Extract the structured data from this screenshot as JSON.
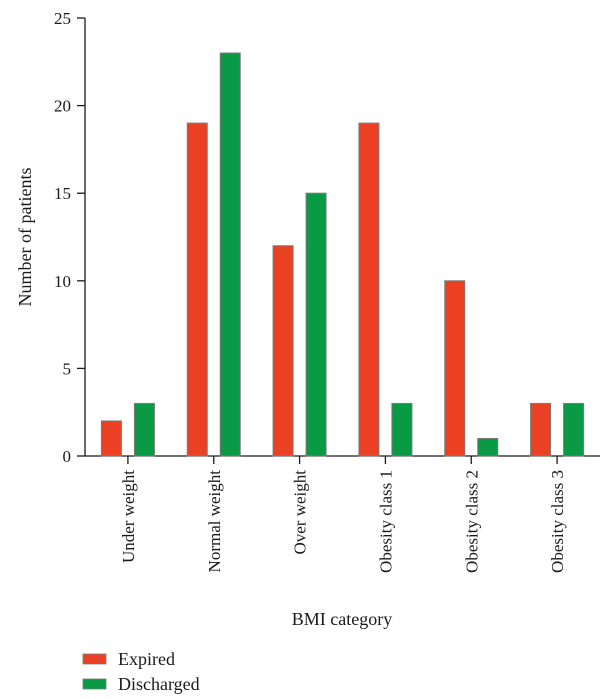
{
  "chart_data": {
    "type": "bar",
    "categories": [
      "Under weight",
      "Normal weight",
      "Over weight",
      "Obesity class 1",
      "Obesity class 2",
      "Obesity class 3"
    ],
    "series": [
      {
        "name": "Expired",
        "values": [
          2,
          19,
          12,
          19,
          10,
          3
        ],
        "color": "#ea4125"
      },
      {
        "name": "Discharged",
        "values": [
          3,
          23,
          15,
          3,
          1,
          3
        ],
        "color": "#0a9a45"
      }
    ],
    "xlabel": "BMI category",
    "ylabel": "Number of patients",
    "ylim": [
      0,
      25
    ],
    "yticks": [
      0,
      5,
      10,
      15,
      20,
      25
    ],
    "grid": false,
    "legend_position": "bottom-left"
  }
}
